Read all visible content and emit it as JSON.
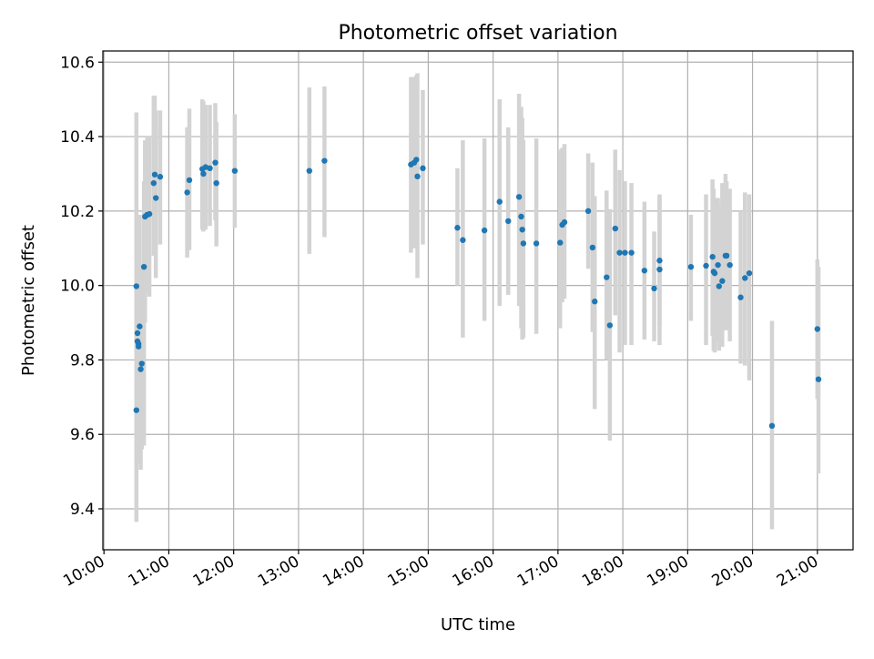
{
  "chart_data": {
    "type": "scatter",
    "title": "Photometric offset variation",
    "xlabel": "UTC time",
    "ylabel": "Photometric offset",
    "xlim": [
      "09:59",
      "21:33"
    ],
    "ylim": [
      9.29,
      10.63
    ],
    "grid": true,
    "x_tick_labels": [
      "10:00",
      "11:00",
      "12:00",
      "13:00",
      "14:00",
      "15:00",
      "16:00",
      "17:00",
      "18:00",
      "19:00",
      "20:00",
      "21:00"
    ],
    "y_tick_labels": [
      "9.4",
      "9.6",
      "9.8",
      "10.0",
      "10.2",
      "10.4",
      "10.6"
    ],
    "marker_color": "#1f77b4",
    "errorbar_color": "#d3d3d3",
    "series": [
      {
        "x": [
          "10:30",
          "10:30",
          "10:31",
          "10:31",
          "10:32",
          "10:32",
          "10:33",
          "10:34",
          "10:35",
          "10:37",
          "10:38",
          "10:40",
          "10:42",
          "10:46",
          "10:47",
          "10:48",
          "10:52",
          "11:17",
          "11:19",
          "11:31",
          "11:32",
          "11:34",
          "11:38",
          "11:43",
          "11:44",
          "12:01",
          "13:10",
          "13:24",
          "14:44",
          "14:47",
          "14:49",
          "14:50",
          "14:55",
          "15:27",
          "15:32",
          "15:52",
          "16:06",
          "16:14",
          "16:24",
          "16:26",
          "16:27",
          "16:28",
          "16:40",
          "17:02",
          "17:04",
          "17:06",
          "17:28",
          "17:32",
          "17:34",
          "17:45",
          "17:48",
          "17:53",
          "17:57",
          "18:02",
          "18:08",
          "18:20",
          "18:29",
          "18:34",
          "18:34",
          "19:03",
          "19:17",
          "19:23",
          "19:24",
          "19:25",
          "19:28",
          "19:29",
          "19:32",
          "19:35",
          "19:36",
          "19:39",
          "19:49",
          "19:53",
          "19:57",
          "21:00",
          "21:01",
          "20:18"
        ],
        "y": [
          9.665,
          9.998,
          9.872,
          9.85,
          9.836,
          9.843,
          9.89,
          9.775,
          9.79,
          10.05,
          10.185,
          10.19,
          10.192,
          10.275,
          10.298,
          10.235,
          10.292,
          10.25,
          10.283,
          10.313,
          10.3,
          10.318,
          10.315,
          10.33,
          10.275,
          10.308,
          10.308,
          10.335,
          10.325,
          10.33,
          10.338,
          10.293,
          10.315,
          10.155,
          10.122,
          10.148,
          10.225,
          10.173,
          10.238,
          10.185,
          10.15,
          10.113,
          10.113,
          10.115,
          10.163,
          10.17,
          10.2,
          10.102,
          9.957,
          10.022,
          9.893,
          10.153,
          10.088,
          10.088,
          10.088,
          10.04,
          9.992,
          10.043,
          10.067,
          10.05,
          10.053,
          10.077,
          10.037,
          10.033,
          10.055,
          9.998,
          10.012,
          10.08,
          10.08,
          10.055,
          9.968,
          10.02,
          10.033,
          9.883,
          9.748,
          9.623
        ],
        "y_low": [
          9.525,
          9.365,
          9.54,
          9.53,
          9.52,
          9.56,
          9.52,
          9.505,
          9.56,
          9.57,
          9.9,
          9.98,
          9.97,
          10.08,
          10.1,
          10.02,
          10.11,
          10.075,
          10.095,
          10.15,
          10.145,
          10.15,
          10.16,
          10.175,
          10.105,
          10.155,
          10.085,
          10.13,
          10.088,
          10.1,
          10.11,
          10.02,
          10.11,
          10.0,
          9.86,
          9.905,
          9.945,
          9.975,
          9.945,
          9.885,
          9.855,
          9.86,
          9.87,
          9.885,
          9.955,
          9.965,
          10.045,
          9.875,
          9.668,
          9.8,
          9.583,
          9.92,
          9.82,
          9.84,
          9.84,
          9.855,
          9.85,
          9.84,
          9.89,
          9.905,
          9.84,
          9.865,
          9.825,
          9.82,
          9.85,
          9.825,
          9.835,
          9.88,
          9.88,
          9.85,
          9.79,
          9.785,
          9.745,
          9.695,
          9.495,
          9.345
        ],
        "y_high": [
          10.465,
          10.2,
          10.15,
          10.13,
          10.14,
          10.18,
          10.19,
          10.05,
          10.05,
          10.28,
          10.39,
          10.4,
          10.4,
          10.51,
          10.51,
          10.47,
          10.47,
          10.425,
          10.475,
          10.5,
          10.495,
          10.485,
          10.485,
          10.49,
          10.44,
          10.46,
          10.532,
          10.535,
          10.56,
          10.56,
          10.565,
          10.57,
          10.525,
          10.315,
          10.39,
          10.395,
          10.5,
          10.425,
          10.515,
          10.48,
          10.45,
          10.39,
          10.395,
          10.365,
          10.37,
          10.38,
          10.355,
          10.33,
          10.24,
          10.255,
          10.205,
          10.365,
          10.31,
          10.28,
          10.275,
          10.225,
          10.145,
          10.245,
          10.24,
          10.19,
          10.245,
          10.285,
          10.26,
          10.235,
          10.235,
          10.215,
          10.275,
          10.3,
          10.28,
          10.26,
          10.2,
          10.25,
          10.245,
          10.07,
          10.05,
          9.905
        ]
      }
    ]
  }
}
